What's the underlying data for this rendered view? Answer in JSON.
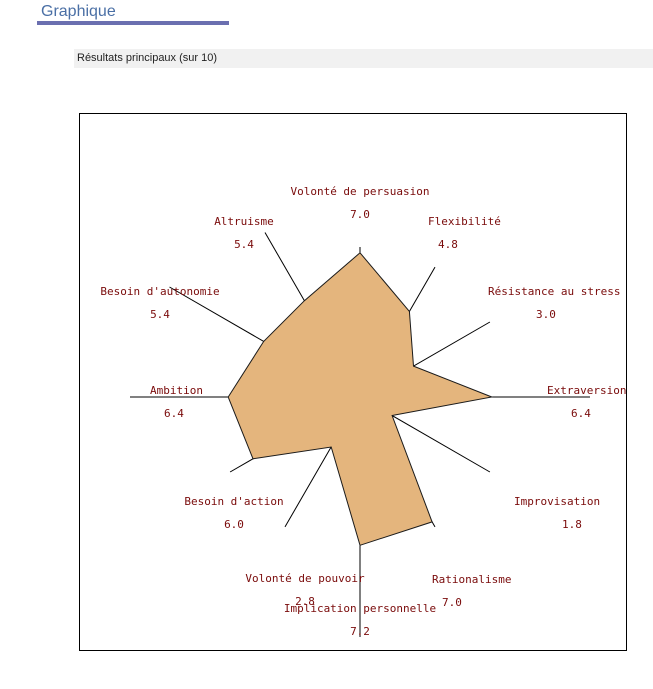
{
  "header": {
    "title": "Graphique",
    "subtitle": "Résultats principaux (sur 10)"
  },
  "colors": {
    "accent": "#6b6fb0",
    "fill": "#e4b57d",
    "label": "#7a0b0b"
  },
  "chart_data": {
    "type": "radar",
    "range": [
      0,
      10
    ],
    "categories": [
      "Volonté de persuasion",
      "Flexibilité",
      "Résistance au stress",
      "Extraversion",
      "Improvisation",
      "Rationalisme",
      "Implication personnelle",
      "Volonté de pouvoir",
      "Besoin d'action",
      "Ambition",
      "Besoin d'autonomie",
      "Altruisme"
    ],
    "value_labels": [
      "7.0",
      "4.8",
      "3.0",
      "6.4",
      "1.8",
      "7.0",
      "7.2",
      "2.8",
      "6.0",
      "6.4",
      "5.4",
      "5.4"
    ],
    "values": [
      7.0,
      4.8,
      3.0,
      6.4,
      1.8,
      7.0,
      7.2,
      2.8,
      6.0,
      6.4,
      5.4,
      5.4
    ],
    "grid": false,
    "legend": "none"
  }
}
